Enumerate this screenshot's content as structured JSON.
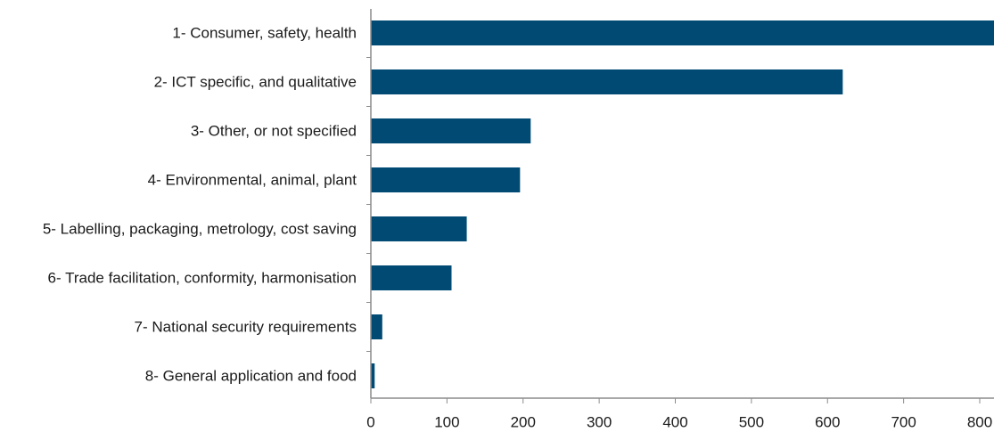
{
  "chart_data": {
    "type": "bar",
    "orientation": "horizontal",
    "title": "",
    "xlabel": "",
    "ylabel": "",
    "categories": [
      "1- Consumer, safety, health",
      "2- ICT specific, and qualitative",
      "3- Other, or not specified",
      "4- Environmental, animal, plant",
      "5- Labelling, packaging, metrology, cost saving",
      "6- Trade facilitation, conformity, harmonisation",
      "7- National security requirements",
      "8- General application and food"
    ],
    "values": [
      822,
      620,
      210,
      196,
      126,
      106,
      15,
      5
    ],
    "xlim": [
      0,
      820
    ],
    "xticks": [
      0,
      100,
      200,
      300,
      400,
      500,
      600,
      700,
      800
    ],
    "grid": false,
    "legend": "none",
    "colors": {
      "bar": "#004a74",
      "axis": "#8c8c8c",
      "text": "#1a1a1a"
    }
  }
}
